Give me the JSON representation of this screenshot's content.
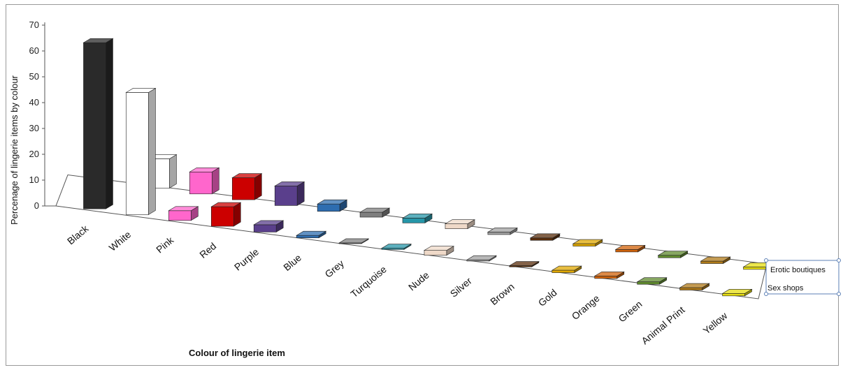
{
  "chart_data": {
    "type": "bar",
    "subtype": "3d-column",
    "title": "",
    "xlabel": "Colour of lingerie item",
    "ylabel": "Percenage of lingerie items by colour",
    "ylim": [
      0,
      70
    ],
    "yticks": [
      0,
      10,
      20,
      30,
      40,
      50,
      60,
      70
    ],
    "categories": [
      "Black",
      "White",
      "Pink",
      "Red",
      "Purple",
      "Blue",
      "Grey",
      "Turquoise",
      "Nude",
      "Silver",
      "Brown",
      "Gold",
      "Orange",
      "Green",
      "Animal Print",
      "Yellow"
    ],
    "colors": [
      "#2a2a2a",
      "#ffffff",
      "#ff66cc",
      "#cc0000",
      "#5a3f8c",
      "#2e6db0",
      "#7f7f7f",
      "#2596a8",
      "#efd9c8",
      "#a0a0a0",
      "#5a2e0c",
      "#e0a800",
      "#d0620a",
      "#5f8a2e",
      "#b07a18",
      "#e6dd10"
    ],
    "series": [
      {
        "name": "Sex shops",
        "values": [
          68,
          50,
          4,
          8,
          3,
          1,
          0.3,
          0.5,
          2,
          0.5,
          0.5,
          1,
          1,
          1,
          1,
          1
        ]
      },
      {
        "name": "Erotic boutiques",
        "values": [
          0,
          12,
          9,
          9,
          8,
          3,
          2,
          2,
          2,
          1,
          1,
          1,
          1,
          1,
          1,
          1
        ]
      }
    ],
    "legend_position": "right",
    "grid": false
  }
}
